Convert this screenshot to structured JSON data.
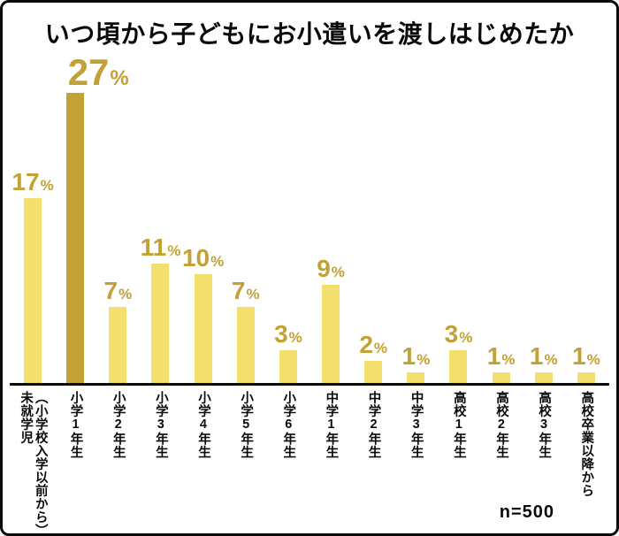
{
  "title": "いつ頃から子どもにお小遣いを渡しはじめたか",
  "sample_size": "n=500",
  "colors": {
    "bar": "#F3DF6D",
    "bar_highlight": "#C2A136",
    "value_label": "#C2A136",
    "axis": "#0A0A0A"
  },
  "chart_data": {
    "type": "bar",
    "title": "いつ頃から子どもにお小遣いを渡しはじめたか",
    "unit": "%",
    "categories": [
      "未就学児\n（小学校入学以前から）",
      "小学1年生",
      "小学2年生",
      "小学3年生",
      "小学4年生",
      "小学5年生",
      "小学6年生",
      "中学1年生",
      "中学2年生",
      "中学3年生",
      "高校1年生",
      "高校2年生",
      "高校3年生",
      "高校卒業以降から"
    ],
    "values": [
      17,
      27,
      7,
      11,
      10,
      7,
      3,
      9,
      2,
      1,
      3,
      1,
      1,
      1
    ],
    "highlight_index": 1,
    "ylim": [
      0,
      30
    ],
    "grid": false,
    "legend": false,
    "annotation": "n=500"
  }
}
